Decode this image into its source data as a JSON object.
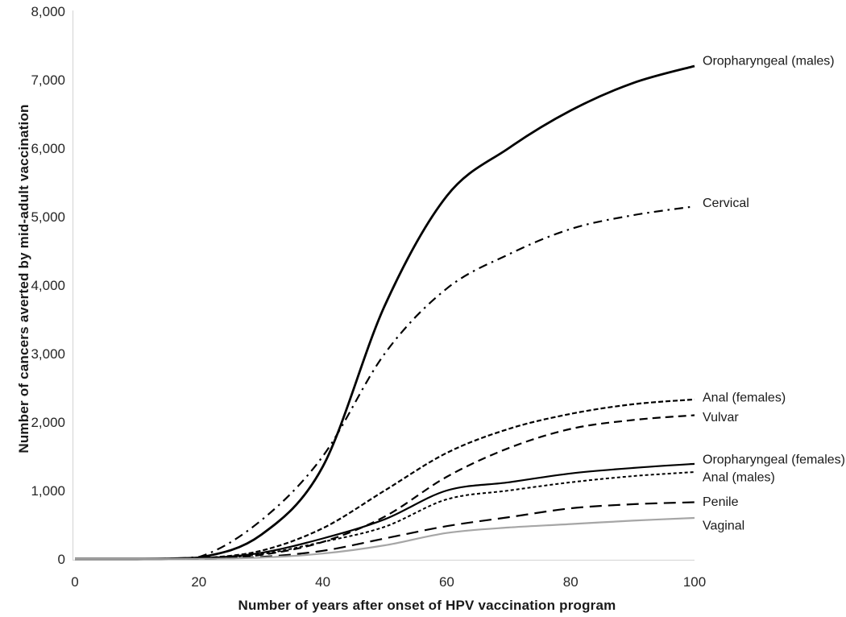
{
  "chart_data": {
    "type": "line",
    "title": "",
    "xlabel": "Number of years after onset of HPV vaccination program",
    "ylabel": "Number of cancers averted by mid-adult vaccination",
    "xlim": [
      0,
      100
    ],
    "ylim": [
      0,
      8000
    ],
    "x_ticks": [
      0,
      20,
      40,
      60,
      80,
      100
    ],
    "y_ticks": [
      0,
      1000,
      2000,
      3000,
      4000,
      5000,
      6000,
      7000,
      8000
    ],
    "y_tick_labels": [
      "0",
      "1,000",
      "2,000",
      "3,000",
      "4,000",
      "5,000",
      "6,000",
      "7,000",
      "8,000"
    ],
    "grid": false,
    "legend_position": "end-of-line-labels-right",
    "axis_color": "#d9d9d9",
    "x": [
      0,
      10,
      20,
      30,
      40,
      50,
      60,
      70,
      80,
      90,
      100
    ],
    "series": [
      {
        "name": "Oropharyngeal (males)",
        "style": "solid-thick",
        "color": "#000000",
        "values": [
          0,
          0,
          20,
          350,
          1350,
          3700,
          5300,
          6000,
          6550,
          6950,
          7200
        ]
      },
      {
        "name": "Cervical",
        "style": "dash-dot",
        "color": "#000000",
        "values": [
          0,
          0,
          30,
          560,
          1500,
          3000,
          3950,
          4450,
          4820,
          5020,
          5150
        ]
      },
      {
        "name": "Anal (females)",
        "style": "short-dash",
        "color": "#000000",
        "values": [
          0,
          0,
          10,
          120,
          450,
          1000,
          1550,
          1900,
          2120,
          2260,
          2330
        ]
      },
      {
        "name": "Vulvar",
        "style": "medium-dash",
        "color": "#000000",
        "values": [
          0,
          0,
          5,
          60,
          250,
          620,
          1200,
          1620,
          1900,
          2030,
          2100
        ]
      },
      {
        "name": "Oropharyngeal (females)",
        "style": "solid",
        "color": "#000000",
        "values": [
          0,
          0,
          10,
          90,
          300,
          580,
          1000,
          1120,
          1250,
          1330,
          1390
        ]
      },
      {
        "name": "Anal (males)",
        "style": "fine-dash",
        "color": "#000000",
        "values": [
          0,
          0,
          5,
          70,
          250,
          470,
          870,
          1000,
          1120,
          1210,
          1270
        ]
      },
      {
        "name": "Penile",
        "style": "long-dash",
        "color": "#000000",
        "values": [
          0,
          0,
          0,
          30,
          120,
          300,
          480,
          610,
          740,
          800,
          830
        ]
      },
      {
        "name": "Vaginal",
        "style": "solid-gray",
        "color": "#a6a6a6",
        "values": [
          0,
          0,
          0,
          20,
          80,
          200,
          380,
          460,
          510,
          560,
          600
        ]
      }
    ]
  }
}
